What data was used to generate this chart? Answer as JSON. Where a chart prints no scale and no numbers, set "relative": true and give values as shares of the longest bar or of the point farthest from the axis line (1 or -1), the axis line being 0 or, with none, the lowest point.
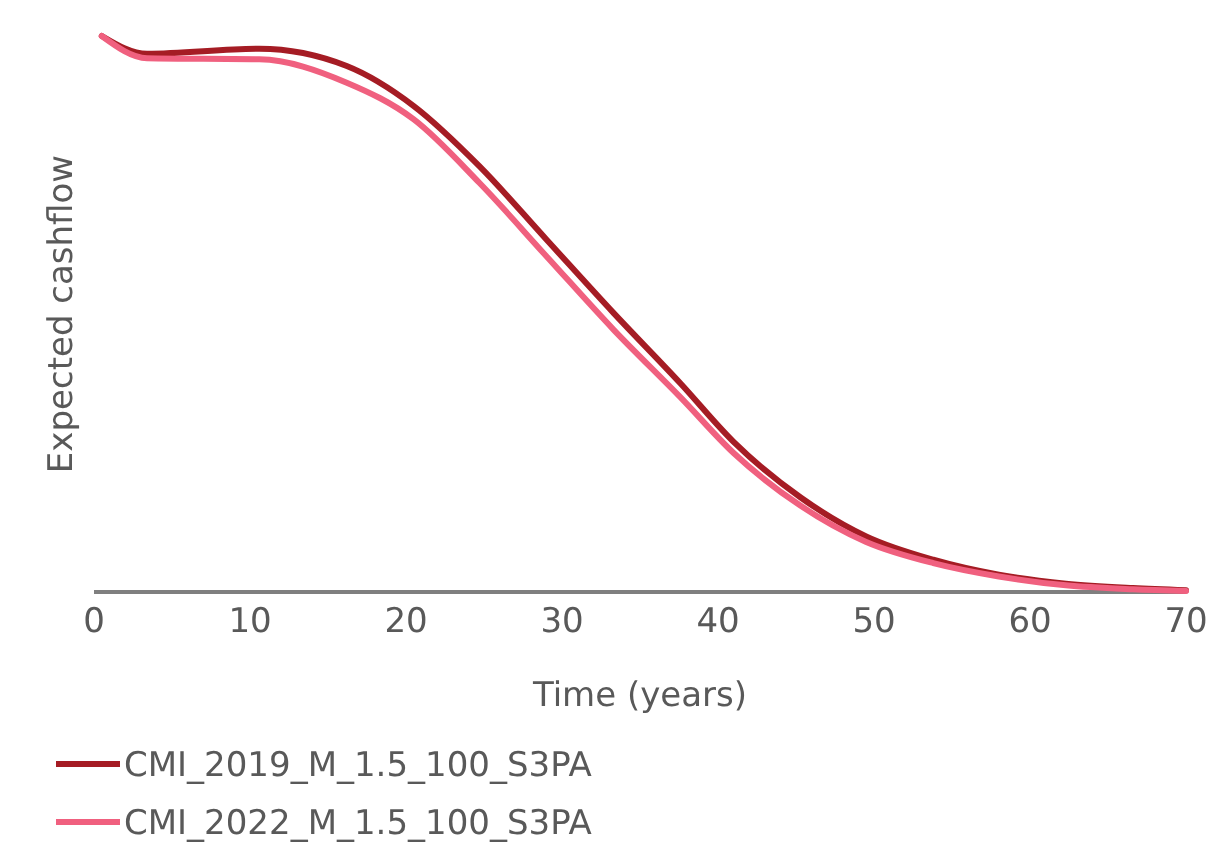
{
  "chart_data": {
    "type": "line",
    "relative": true,
    "xlabel": "Time (years)",
    "ylabel": "Expected cashflow",
    "xlim": [
      0,
      70
    ],
    "xticks": [
      0,
      10,
      20,
      30,
      40,
      50,
      60,
      70
    ],
    "legend": "bottom",
    "grid": false,
    "series": [
      {
        "name": "CMI_2019_M_1.5_100_S3PA",
        "color": "#a51c24",
        "x": [
          0.5,
          3.4,
          10.6,
          16.2,
          20.5,
          24.7,
          29,
          33.3,
          37.6,
          41,
          45.3,
          49.5,
          53.8,
          58,
          62.3,
          66.6,
          70
        ],
        "values": [
          1.0,
          0.968,
          0.977,
          0.946,
          0.874,
          0.766,
          0.634,
          0.502,
          0.375,
          0.27,
          0.17,
          0.1,
          0.058,
          0.031,
          0.015,
          0.007,
          0.003
        ]
      },
      {
        "name": "CMI_2022_M_1.5_100_S3PA",
        "color": "#f0607f",
        "x": [
          0.5,
          3.4,
          10.6,
          16.2,
          20.5,
          24.7,
          29,
          33.3,
          37.6,
          41,
          45.3,
          49.5,
          53.8,
          58,
          62.3,
          66.6,
          70
        ],
        "values": [
          1.0,
          0.96,
          0.958,
          0.916,
          0.85,
          0.736,
          0.604,
          0.472,
          0.35,
          0.25,
          0.155,
          0.09,
          0.052,
          0.028,
          0.012,
          0.005,
          0.002
        ]
      }
    ]
  }
}
